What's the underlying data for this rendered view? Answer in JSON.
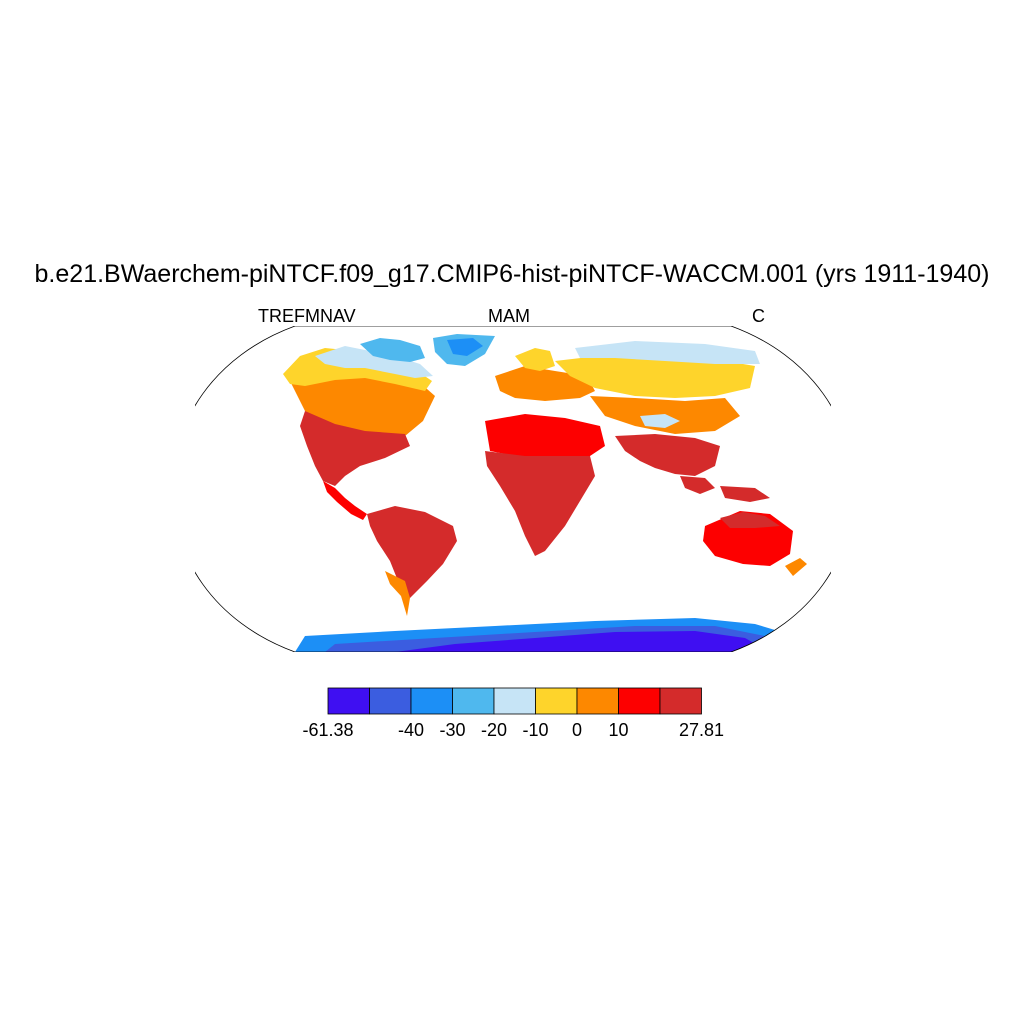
{
  "title": "b.e21.BWaerchem-piNTCF.f09_g17.CMIP6-hist-piNTCF-WACCM.001 (yrs 1911-1940)",
  "left_label": "TREFMNAV",
  "center_label": "MAM",
  "right_label": "C",
  "colorbar": {
    "colors": [
      "#3f0ff2",
      "#3b5de0",
      "#1c8ff6",
      "#4fb8ee",
      "#c6e4f6",
      "#fed42b",
      "#fd8800",
      "#fd0000",
      "#d42b2b"
    ],
    "tick_labels": [
      "-61.38",
      "-40",
      "-30",
      "-20",
      "-10",
      "0",
      "10",
      "27.81"
    ],
    "tick_positions": [
      0,
      2,
      3,
      4,
      5,
      6,
      7,
      9
    ]
  }
}
